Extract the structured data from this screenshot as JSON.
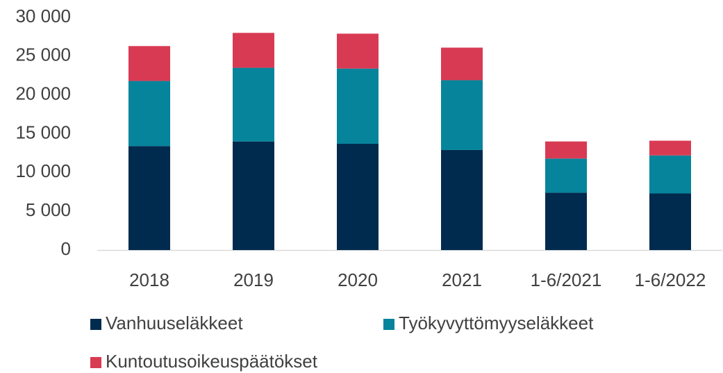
{
  "chart_data": {
    "type": "stacked_bar",
    "categories": [
      "2018",
      "2019",
      "2020",
      "2021",
      "1-6/2021",
      "1-6/2022"
    ],
    "series": [
      {
        "name": "Vanhuuseläkkeet",
        "color": "#002b4e",
        "values": [
          13400,
          14000,
          13700,
          12900,
          7400,
          7300
        ]
      },
      {
        "name": "Työkyvyttömyyseläkkeet",
        "color": "#06849b",
        "values": [
          8400,
          9500,
          9700,
          9000,
          4400,
          4900
        ]
      },
      {
        "name": "Kuntoutusoikeuspäätökset",
        "color": "#d93a53",
        "values": [
          4500,
          4500,
          4500,
          4200,
          2200,
          1900
        ]
      }
    ],
    "ylim": [
      0,
      30000
    ],
    "yticks": [
      0,
      {
        "value": 5000,
        "label": "5 000"
      },
      {
        "value": 10000,
        "label": "10 000"
      },
      {
        "value": 15000,
        "label": "15 000"
      },
      {
        "value": 20000,
        "label": "20 000"
      },
      {
        "value": 25000,
        "label": "25 000"
      },
      {
        "value": 30000,
        "label": "30 000"
      }
    ],
    "grid": false
  }
}
